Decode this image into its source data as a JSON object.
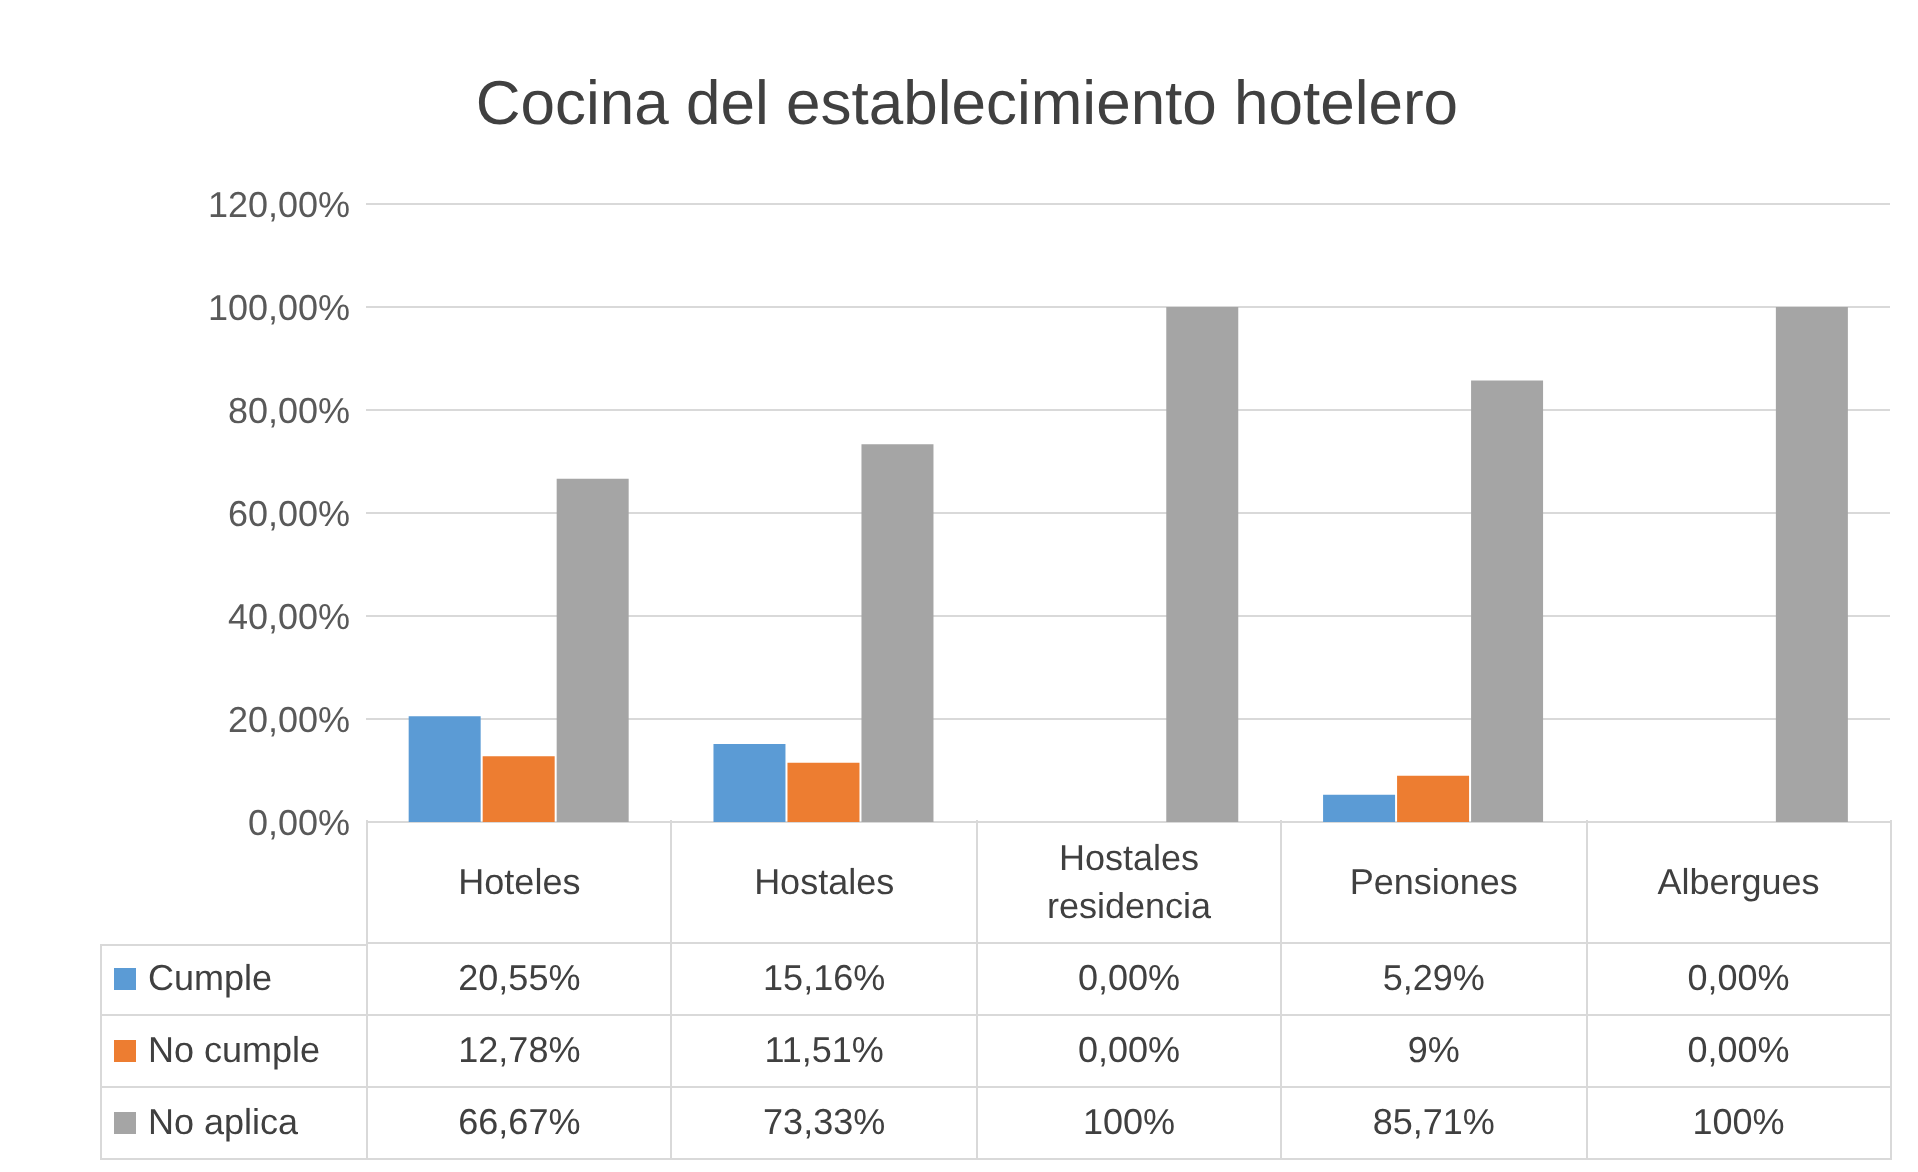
{
  "chart_data": {
    "type": "bar",
    "title": "Cocina del establecimiento hotelero",
    "categories": [
      "Hoteles",
      "Hostales",
      "Hostales residencia",
      "Pensiones",
      "Albergues"
    ],
    "series": [
      {
        "name": "Cumple",
        "color": "#5b9bd5",
        "values": [
          20.55,
          15.16,
          0,
          5.29,
          0
        ],
        "value_labels": [
          "20,55%",
          "15,16%",
          "0,00%",
          "5,29%",
          "0,00%"
        ]
      },
      {
        "name": "No cumple",
        "color": "#ed7d31",
        "values": [
          12.78,
          11.51,
          0,
          9,
          0
        ],
        "value_labels": [
          "12,78%",
          "11,51%",
          "0,00%",
          "9%",
          "0,00%"
        ]
      },
      {
        "name": "No aplica",
        "color": "#a5a5a5",
        "values": [
          66.67,
          73.33,
          100,
          85.71,
          100
        ],
        "value_labels": [
          "66,67%",
          "73,33%",
          "100%",
          "85,71%",
          "100%"
        ]
      }
    ],
    "ylim": [
      0,
      120
    ],
    "yticks": [
      {
        "value": 0,
        "label": "0,00%"
      },
      {
        "value": 20,
        "label": "20,00%"
      },
      {
        "value": 40,
        "label": "40,00%"
      },
      {
        "value": 60,
        "label": "60,00%"
      },
      {
        "value": 80,
        "label": "80,00%"
      },
      {
        "value": 100,
        "label": "100,00%"
      },
      {
        "value": 120,
        "label": "120,00%"
      }
    ],
    "grid": "y",
    "legend": "bottom"
  }
}
